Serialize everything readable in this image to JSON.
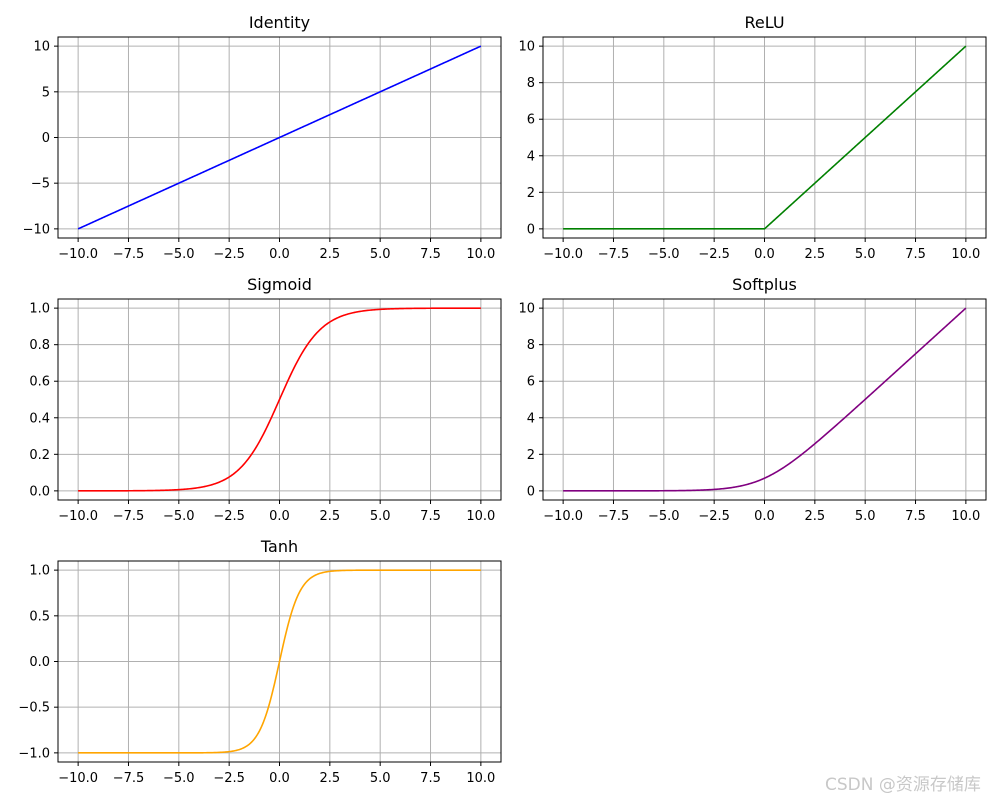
{
  "chart_data": [
    {
      "type": "line",
      "title": "Identity",
      "function": "identity",
      "color": "#0000ff",
      "x_range": [
        -10,
        10
      ],
      "xlim": [
        -11,
        11
      ],
      "ylim": [
        -11,
        11
      ],
      "xticks": [
        -10,
        -7.5,
        -5,
        -2.5,
        0,
        2.5,
        5,
        7.5,
        10
      ],
      "xtick_labels": [
        "−10.0",
        "−7.5",
        "−5.0",
        "−2.5",
        "0.0",
        "2.5",
        "5.0",
        "7.5",
        "10.0"
      ],
      "yticks": [
        -10,
        -5,
        0,
        5,
        10
      ],
      "ytick_labels": [
        "−10",
        "−5",
        "0",
        "5",
        "10"
      ],
      "grid": true,
      "series": [
        {
          "x": [
            -10,
            10
          ],
          "y": [
            -10,
            10
          ]
        }
      ]
    },
    {
      "type": "line",
      "title": "ReLU",
      "function": "relu",
      "color": "#008000",
      "x_range": [
        -10,
        10
      ],
      "xlim": [
        -11,
        11
      ],
      "ylim": [
        -0.5,
        10.5
      ],
      "xticks": [
        -10,
        -7.5,
        -5,
        -2.5,
        0,
        2.5,
        5,
        7.5,
        10
      ],
      "xtick_labels": [
        "−10.0",
        "−7.5",
        "−5.0",
        "−2.5",
        "0.0",
        "2.5",
        "5.0",
        "7.5",
        "10.0"
      ],
      "yticks": [
        0,
        2,
        4,
        6,
        8,
        10
      ],
      "ytick_labels": [
        "0",
        "2",
        "4",
        "6",
        "8",
        "10"
      ],
      "grid": true,
      "series": [
        {
          "x": [
            -10,
            0,
            10
          ],
          "y": [
            0,
            0,
            10
          ]
        }
      ]
    },
    {
      "type": "line",
      "title": "Sigmoid",
      "function": "sigmoid",
      "color": "#ff0000",
      "x_range": [
        -10,
        10
      ],
      "xlim": [
        -11,
        11
      ],
      "ylim": [
        -0.05,
        1.05
      ],
      "xticks": [
        -10,
        -7.5,
        -5,
        -2.5,
        0,
        2.5,
        5,
        7.5,
        10
      ],
      "xtick_labels": [
        "−10.0",
        "−7.5",
        "−5.0",
        "−2.5",
        "0.0",
        "2.5",
        "5.0",
        "7.5",
        "10.0"
      ],
      "yticks": [
        0,
        0.2,
        0.4,
        0.6,
        0.8,
        1.0
      ],
      "ytick_labels": [
        "0.0",
        "0.2",
        "0.4",
        "0.6",
        "0.8",
        "1.0"
      ],
      "grid": true,
      "series": [
        {
          "x": [
            -10,
            -5,
            -2.5,
            0,
            2.5,
            5,
            10
          ],
          "y": [
            0.0,
            0.007,
            0.076,
            0.5,
            0.924,
            0.993,
            1.0
          ]
        }
      ]
    },
    {
      "type": "line",
      "title": "Softplus",
      "function": "softplus",
      "color": "#800080",
      "x_range": [
        -10,
        10
      ],
      "xlim": [
        -11,
        11
      ],
      "ylim": [
        -0.5,
        10.5
      ],
      "xticks": [
        -10,
        -7.5,
        -5,
        -2.5,
        0,
        2.5,
        5,
        7.5,
        10
      ],
      "xtick_labels": [
        "−10.0",
        "−7.5",
        "−5.0",
        "−2.5",
        "0.0",
        "2.5",
        "5.0",
        "7.5",
        "10.0"
      ],
      "yticks": [
        0,
        2,
        4,
        6,
        8,
        10
      ],
      "ytick_labels": [
        "0",
        "2",
        "4",
        "6",
        "8",
        "10"
      ],
      "grid": true,
      "series": [
        {
          "x": [
            -10,
            -5,
            -2.5,
            0,
            2.5,
            5,
            10
          ],
          "y": [
            0.0,
            0.007,
            0.079,
            0.693,
            2.579,
            5.007,
            10.0
          ]
        }
      ]
    },
    {
      "type": "line",
      "title": "Tanh",
      "function": "tanh",
      "color": "#ffa500",
      "x_range": [
        -10,
        10
      ],
      "xlim": [
        -11,
        11
      ],
      "ylim": [
        -1.1,
        1.1
      ],
      "xticks": [
        -10,
        -7.5,
        -5,
        -2.5,
        0,
        2.5,
        5,
        7.5,
        10
      ],
      "xtick_labels": [
        "−10.0",
        "−7.5",
        "−5.0",
        "−2.5",
        "0.0",
        "2.5",
        "5.0",
        "7.5",
        "10.0"
      ],
      "yticks": [
        -1,
        -0.5,
        0,
        0.5,
        1
      ],
      "ytick_labels": [
        "−1.0",
        "−0.5",
        "0.0",
        "0.5",
        "1.0"
      ],
      "grid": true,
      "series": [
        {
          "x": [
            -10,
            -2.5,
            -1,
            0,
            1,
            2.5,
            10
          ],
          "y": [
            -1.0,
            -0.987,
            -0.762,
            0.0,
            0.762,
            0.987,
            1.0
          ]
        }
      ]
    }
  ],
  "watermark": "CSDN @资源存储库"
}
